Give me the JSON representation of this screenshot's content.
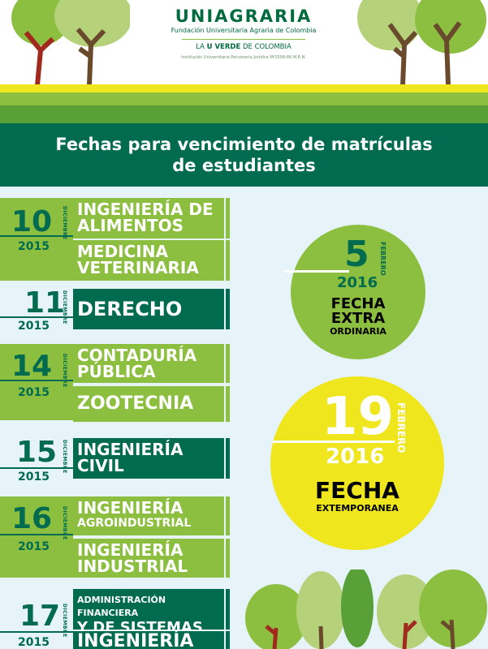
{
  "header": {
    "brand_name": "UNIAGRARIA",
    "brand_sub": "Fundación Universitaria Agraria de Colombia",
    "tagline_pre": "LA ",
    "tagline_bold": "U VERDE",
    "tagline_post": " DE COLOMBIA",
    "institution": "Institución Universitaria Personería Jurídica Nº2599-86 M.E.N."
  },
  "title": {
    "line1": "Fechas para vencimiento de matrículas",
    "line2": "de estudiantes"
  },
  "entries": [
    {
      "day": "10",
      "month": "DICIEMBRE",
      "year": "2015",
      "programs": [
        {
          "l1": "INGENIERÍA DE",
          "l2": "ALIMENTOS"
        },
        {
          "l1": "MEDICINA",
          "l2": "VETERINARIA"
        }
      ]
    },
    {
      "day": "11",
      "month": "DICIEMBRE",
      "year": "2015",
      "programs": [
        {
          "l1": "DERECHO",
          "l2": ""
        }
      ]
    },
    {
      "day": "14",
      "month": "DICIEMBRE",
      "year": "2015",
      "programs": [
        {
          "l1": "CONTADURÍA",
          "l2": "PÚBLICA"
        },
        {
          "l1": "ZOOTECNIA",
          "l2": ""
        }
      ]
    },
    {
      "day": "15",
      "month": "DICIEMBRE",
      "year": "2015",
      "programs": [
        {
          "l1": "INGENIERÍA",
          "l2": "CIVIL"
        }
      ]
    },
    {
      "day": "16",
      "month": "DICIEMBRE",
      "year": "2015",
      "programs": [
        {
          "l1": "INGENIERÍA",
          "l2": "AGROINDUSTRIAL"
        },
        {
          "l1": "INGENIERÍA",
          "l2": "INDUSTRIAL"
        }
      ]
    },
    {
      "day": "17",
      "month": "DICIEMBRE",
      "year": "2015",
      "programs": [
        {
          "l1": "ADMINISTRACIÓN FINANCIERA",
          "l2": "Y DE SISTEMAS"
        },
        {
          "l1": "INGENIERÍA",
          "l2": ""
        }
      ]
    }
  ],
  "extra": {
    "day": "5",
    "month": "FEBRERO",
    "year": "2016",
    "label1": "FECHA",
    "label2": "EXTRA",
    "label3": "ORDINARIA"
  },
  "extemp": {
    "day": "19",
    "month": "FEBRERO",
    "year": "2016",
    "label1": "FECHA",
    "label2": "EXTEMPORANEA"
  },
  "colors": {
    "dark_green": "#006b4f",
    "light_green": "#8cbf3f",
    "yellow": "#f0e61e",
    "background": "#e6f3f8"
  }
}
